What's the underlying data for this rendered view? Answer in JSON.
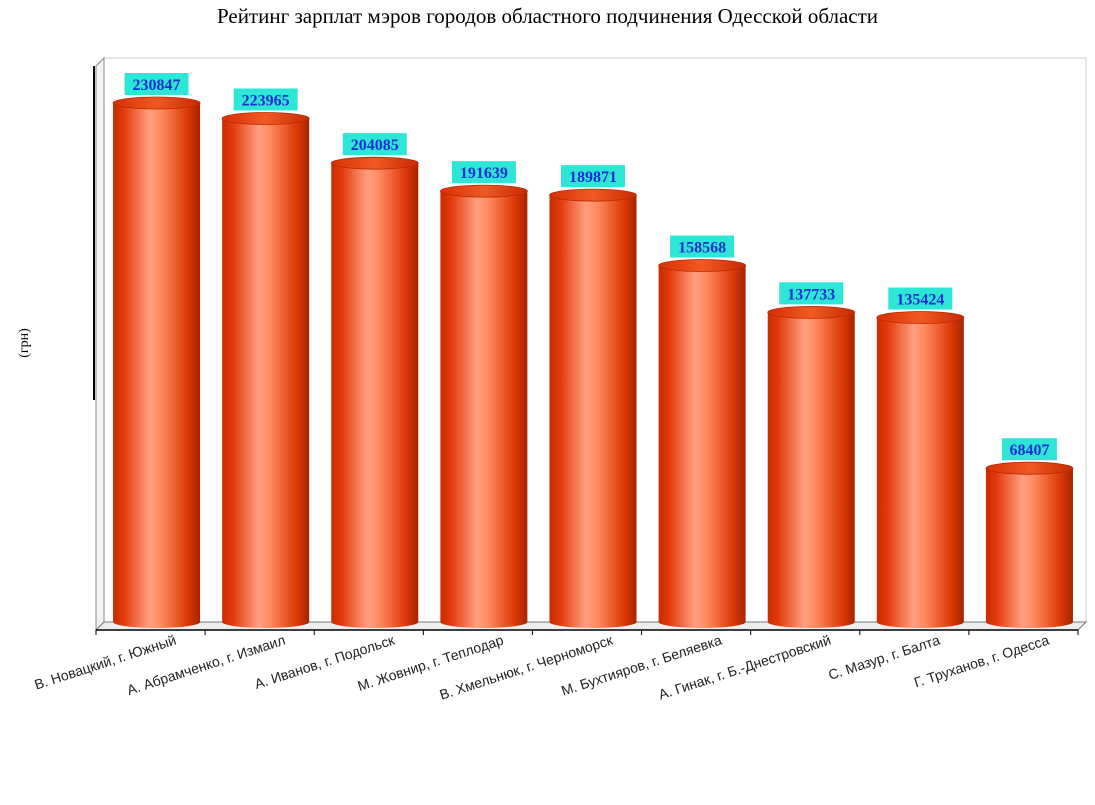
{
  "chart_data": {
    "type": "bar",
    "title": "Рейтинг зарплат мэров городов областного подчинения Одесской области",
    "ylabel": "(грн)",
    "xlabel": "",
    "categories": [
      "В. Новацкий, г. Южный",
      "А. Абрамченко, г. Измаил",
      "А. Иванов, г. Подольск",
      "М. Жовнир, г. Теплодар",
      "В. Хмельнюк, г. Черноморск",
      "М. Бухтияров, г. Беляевка",
      "А. Гинак, г. Б.-Днестровский",
      "С. Мазур, г. Балта",
      "Г. Труханов, г. Одесса"
    ],
    "values": [
      230847,
      223965,
      204085,
      191639,
      189871,
      158568,
      137733,
      135424,
      68407
    ],
    "labels": [
      "230847",
      "223965",
      "204085",
      "191639",
      "189871",
      "158568",
      "137733",
      "135424",
      "68407"
    ],
    "ylim": [
      0,
      240000
    ],
    "grid": false,
    "bar_color": "#e8400c",
    "label_bg_color": "#2ee6d6",
    "label_text_color": "#1a2fd0"
  }
}
